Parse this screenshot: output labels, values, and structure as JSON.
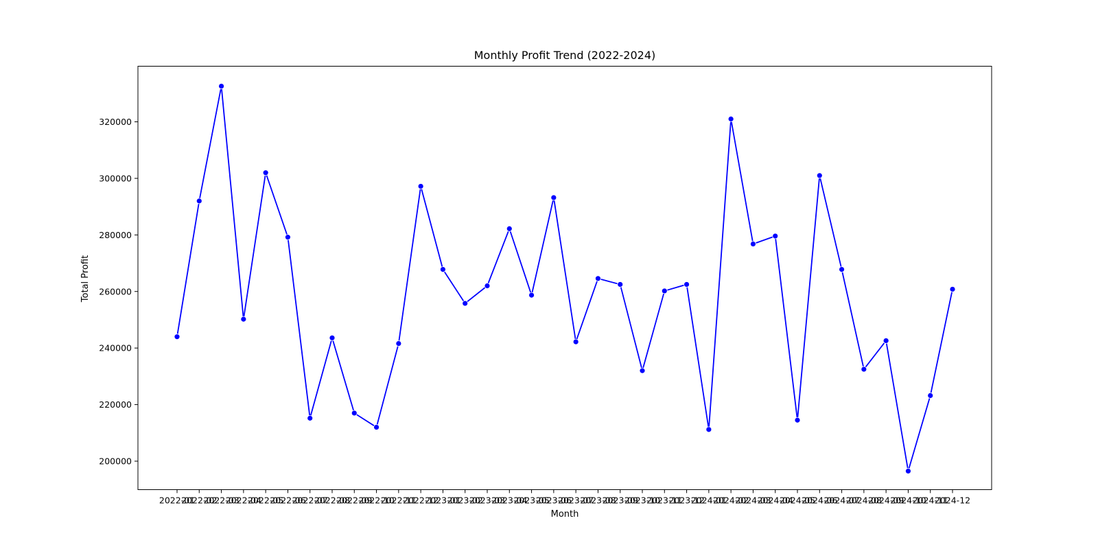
{
  "chart_data": {
    "type": "line",
    "title": "Monthly Profit Trend (2022-2024)",
    "xlabel": "Month",
    "ylabel": "Total Profit",
    "ylim": [
      190000,
      340000
    ],
    "yticks": [
      200000,
      220000,
      240000,
      260000,
      280000,
      300000,
      320000
    ],
    "grid": false,
    "color": "#0000ff",
    "x": [
      "2022-01",
      "2022-02",
      "2022-03",
      "2022-04",
      "2022-05",
      "2022-06",
      "2022-07",
      "2022-08",
      "2022-09",
      "2022-10",
      "2022-11",
      "2022-12",
      "2023-01",
      "2023-02",
      "2023-03",
      "2023-04",
      "2023-05",
      "2023-06",
      "2023-07",
      "2023-08",
      "2023-09",
      "2023-10",
      "2023-11",
      "2023-12",
      "2024-01",
      "2024-02",
      "2024-03",
      "2024-04",
      "2024-05",
      "2024-06",
      "2024-07",
      "2024-08",
      "2024-09",
      "2024-10",
      "2024-11",
      "2024-12"
    ],
    "series": [
      {
        "values": [
          244000,
          292000,
          332600,
          250200,
          302000,
          279200,
          215200,
          243600,
          217000,
          212000,
          241600,
          297200,
          267800,
          255800,
          262000,
          282200,
          258700,
          293200,
          242200,
          264600,
          262500,
          232000,
          260200,
          262500,
          211200,
          321000,
          276800,
          279600,
          214500,
          301000,
          267800,
          232500,
          242600,
          196500,
          223200,
          260800
        ]
      }
    ]
  }
}
